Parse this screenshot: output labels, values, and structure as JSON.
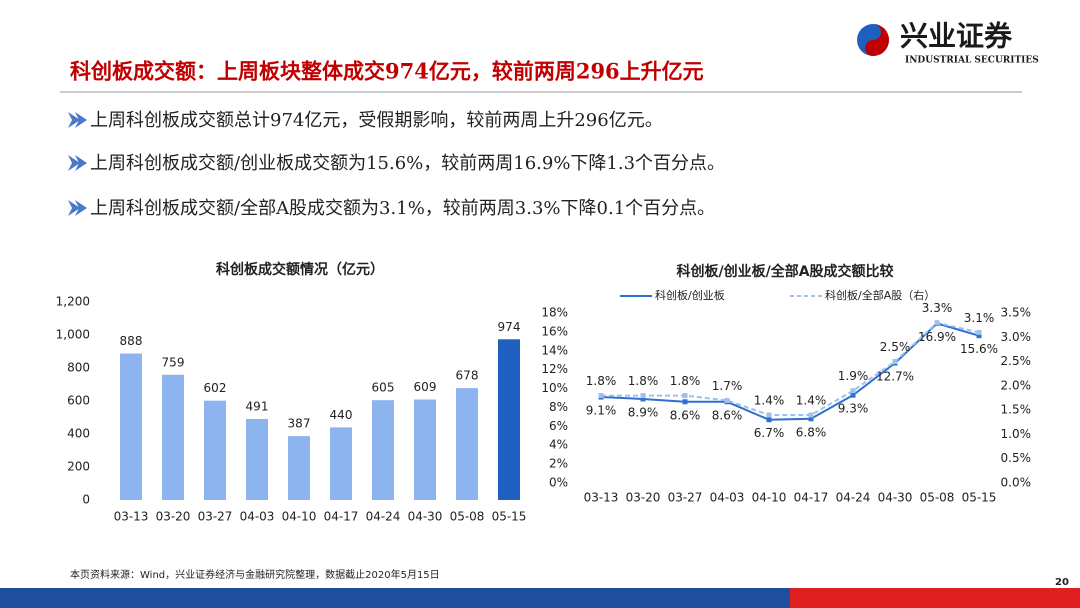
{
  "header": {
    "title": "科创板成交额：上周板块整体成交974亿元，较前两周296上升亿元",
    "logo_cn": "兴业证券",
    "logo_en": "INDUSTRIAL SECURITIES"
  },
  "bullets": [
    "上周科创板成交额总计974亿元，受假期影响，较前两周上升296亿元。",
    "上周科创板成交额/创业板成交额为15.6%，较前两周16.9%下降1.3个百分点。",
    "上周科创板成交额/全部A股成交额为3.1%，较前两周3.3%下降0.1个百分点。"
  ],
  "source": "本页资料来源：Wind，兴业证券经济与金融研究院整理，数据截止2020年5月15日",
  "page_number": "20",
  "chart_data": [
    {
      "type": "bar",
      "title": "科创板成交额情况（亿元）",
      "categories": [
        "03-13",
        "03-20",
        "03-27",
        "04-03",
        "04-10",
        "04-17",
        "04-24",
        "04-30",
        "05-08",
        "05-15"
      ],
      "values": [
        888,
        759,
        602,
        491,
        387,
        440,
        605,
        609,
        678,
        974
      ],
      "colors": [
        "#8db4ee",
        "#8db4ee",
        "#8db4ee",
        "#8db4ee",
        "#8db4ee",
        "#8db4ee",
        "#8db4ee",
        "#8db4ee",
        "#8db4ee",
        "#1f5fbf"
      ],
      "ylim": [
        0,
        1200
      ],
      "yticks": [
        0,
        200,
        400,
        600,
        800,
        {
          "value": 1000,
          "label": "1,000"
        },
        {
          "value": 1200,
          "label": "1,200"
        }
      ]
    },
    {
      "type": "line",
      "title": "科创板/创业板/全部A股成交额比较",
      "categories": [
        "03-13",
        "03-20",
        "03-27",
        "04-03",
        "04-10",
        "04-17",
        "04-24",
        "04-30",
        "05-08",
        "05-15"
      ],
      "series": [
        {
          "name": "科创板/创业板",
          "color": "#2f6fd0",
          "values": [
            9.1,
            8.9,
            8.6,
            8.6,
            6.7,
            6.8,
            9.3,
            12.7,
            16.9,
            15.6
          ],
          "value_labels": [
            "9.1%",
            "8.9%",
            "8.6%",
            "8.6%",
            "6.7%",
            "6.8%",
            "9.3%",
            "12.7%",
            "16.9%",
            "15.6%"
          ]
        },
        {
          "name": "科创板/全部A股（右）",
          "color": "#9ec0ee",
          "axis": "y2",
          "dashed": true,
          "values": [
            1.8,
            1.8,
            1.8,
            1.7,
            1.4,
            1.4,
            1.9,
            2.5,
            3.3,
            3.1
          ],
          "value_labels": [
            "1.8%",
            "1.8%",
            "1.8%",
            "1.7%",
            "1.4%",
            "1.4%",
            "1.9%",
            "2.5%",
            "3.3%",
            "3.1%"
          ]
        }
      ],
      "ylim": [
        0,
        18
      ],
      "yticks": [
        {
          "value": 0,
          "label": "0%"
        },
        {
          "value": 2,
          "label": "2%"
        },
        {
          "value": 4,
          "label": "4%"
        },
        {
          "value": 6,
          "label": "6%"
        },
        {
          "value": 8,
          "label": "8%"
        },
        {
          "value": 10,
          "label": "10%"
        },
        {
          "value": 12,
          "label": "12%"
        },
        {
          "value": 14,
          "label": "14%"
        },
        {
          "value": 16,
          "label": "16%"
        },
        {
          "value": 18,
          "label": "18%"
        }
      ],
      "y2lim": [
        0,
        3.5
      ],
      "y2ticks": [
        {
          "value": 0,
          "label": "0.0%"
        },
        {
          "value": 0.5,
          "label": "0.5%"
        },
        {
          "value": 1,
          "label": "1.0%"
        },
        {
          "value": 1.5,
          "label": "1.5%"
        },
        {
          "value": 2,
          "label": "2.0%"
        },
        {
          "value": 2.5,
          "label": "2.5%"
        },
        {
          "value": 3,
          "label": "3.0%"
        },
        {
          "value": 3.5,
          "label": "3.5%"
        }
      ],
      "legend": "top"
    }
  ]
}
